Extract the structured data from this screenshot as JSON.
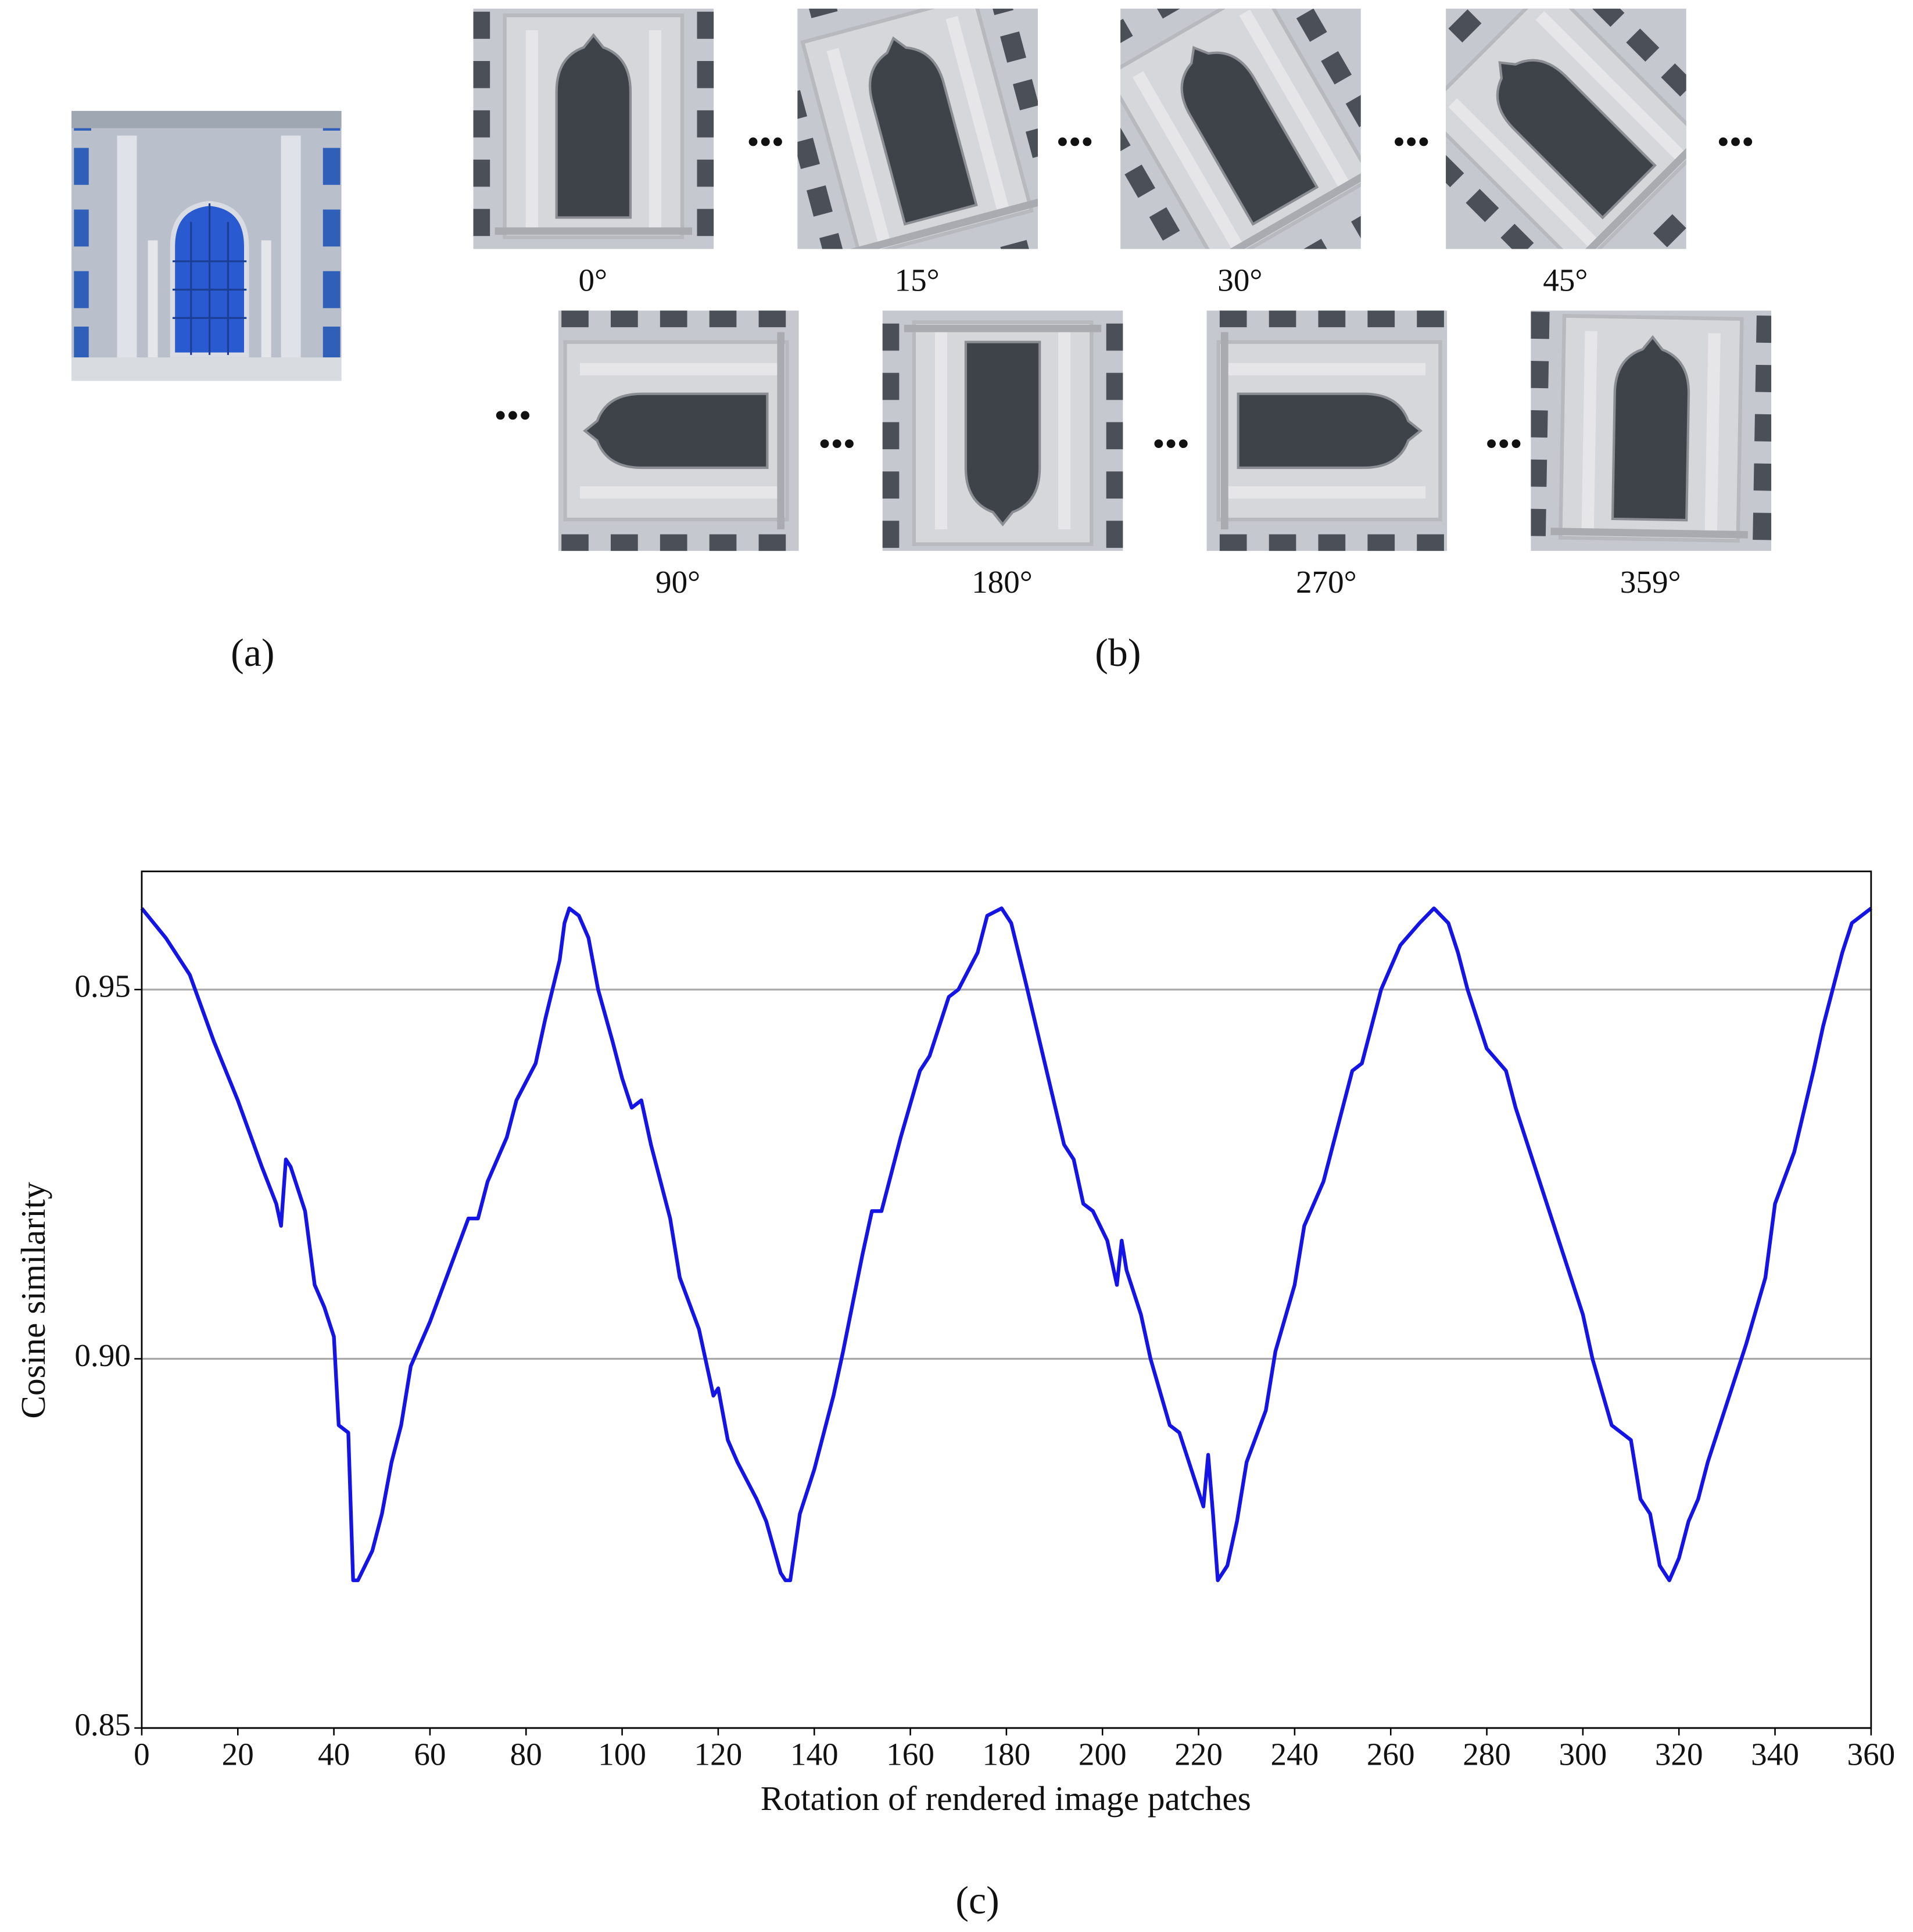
{
  "panels": {
    "a": "(a)",
    "b": "(b)",
    "c": "(c)"
  },
  "rotations": [
    {
      "value": 0,
      "label": "0°"
    },
    {
      "value": 15,
      "label": "15°"
    },
    {
      "value": 30,
      "label": "30°"
    },
    {
      "value": 45,
      "label": "45°"
    },
    {
      "value": 90,
      "label": "90°"
    },
    {
      "value": 180,
      "label": "180°"
    },
    {
      "value": 270,
      "label": "270°"
    },
    {
      "value": 359,
      "label": "359°"
    }
  ],
  "chart_data": {
    "type": "line",
    "x_label": "Rotation of rendered image patches",
    "y_label": "Cosine similarity",
    "x": [
      0,
      5,
      10,
      15,
      20,
      25,
      28,
      29,
      30,
      31,
      34,
      36,
      38,
      40,
      41,
      43,
      44,
      45,
      48,
      50,
      52,
      54,
      56,
      60,
      64,
      68,
      70,
      72,
      76,
      78,
      82,
      84,
      87,
      88,
      89,
      91,
      93,
      95,
      98,
      100,
      102,
      104,
      106,
      110,
      112,
      116,
      119,
      120,
      122,
      124,
      128,
      130,
      133,
      134,
      135,
      137,
      140,
      144,
      146,
      150,
      152,
      154,
      158,
      162,
      164,
      168,
      170,
      174,
      176,
      179,
      181,
      184,
      188,
      192,
      194,
      196,
      198,
      201,
      203,
      204,
      205,
      208,
      210,
      214,
      216,
      220,
      221,
      222,
      223,
      224,
      226,
      228,
      230,
      234,
      236,
      240,
      242,
      246,
      250,
      252,
      254,
      256,
      258,
      262,
      266,
      269,
      272,
      274,
      276,
      280,
      284,
      286,
      290,
      294,
      296,
      300,
      302,
      306,
      310,
      312,
      314,
      316,
      318,
      320,
      322,
      324,
      326,
      330,
      334,
      338,
      340,
      344,
      348,
      350,
      354,
      356,
      360
    ],
    "series": [
      {
        "name": "Cosine similarity",
        "color": "#1414e6",
        "values": [
          0.961,
          0.957,
          0.952,
          0.943,
          0.935,
          0.926,
          0.921,
          0.918,
          0.927,
          0.926,
          0.92,
          0.91,
          0.907,
          0.903,
          0.891,
          0.89,
          0.87,
          0.87,
          0.874,
          0.879,
          0.886,
          0.891,
          0.899,
          0.905,
          0.912,
          0.919,
          0.919,
          0.924,
          0.93,
          0.935,
          0.94,
          0.946,
          0.954,
          0.959,
          0.961,
          0.96,
          0.957,
          0.95,
          0.943,
          0.938,
          0.934,
          0.935,
          0.929,
          0.919,
          0.911,
          0.904,
          0.895,
          0.896,
          0.889,
          0.886,
          0.881,
          0.878,
          0.871,
          0.87,
          0.87,
          0.879,
          0.885,
          0.895,
          0.901,
          0.914,
          0.92,
          0.92,
          0.93,
          0.939,
          0.941,
          0.949,
          0.95,
          0.955,
          0.96,
          0.961,
          0.959,
          0.951,
          0.94,
          0.929,
          0.927,
          0.921,
          0.92,
          0.916,
          0.91,
          0.916,
          0.912,
          0.906,
          0.9,
          0.891,
          0.89,
          0.882,
          0.88,
          0.887,
          0.879,
          0.87,
          0.872,
          0.878,
          0.886,
          0.893,
          0.901,
          0.91,
          0.918,
          0.924,
          0.934,
          0.939,
          0.94,
          0.945,
          0.95,
          0.956,
          0.959,
          0.961,
          0.959,
          0.955,
          0.95,
          0.942,
          0.939,
          0.934,
          0.926,
          0.918,
          0.914,
          0.906,
          0.9,
          0.891,
          0.889,
          0.881,
          0.879,
          0.872,
          0.87,
          0.873,
          0.878,
          0.881,
          0.886,
          0.894,
          0.902,
          0.911,
          0.921,
          0.928,
          0.939,
          0.945,
          0.955,
          0.959,
          0.961
        ]
      }
    ],
    "xlim": [
      0,
      360
    ],
    "xticks": [
      0,
      20,
      40,
      60,
      80,
      100,
      120,
      140,
      160,
      180,
      200,
      220,
      240,
      260,
      280,
      300,
      320,
      340,
      360
    ],
    "ylim": [
      0.85,
      0.966
    ],
    "yticks": [
      0.85,
      {
        "value": 0.9,
        "label": "0.90"
      },
      0.95
    ],
    "grid": true
  }
}
